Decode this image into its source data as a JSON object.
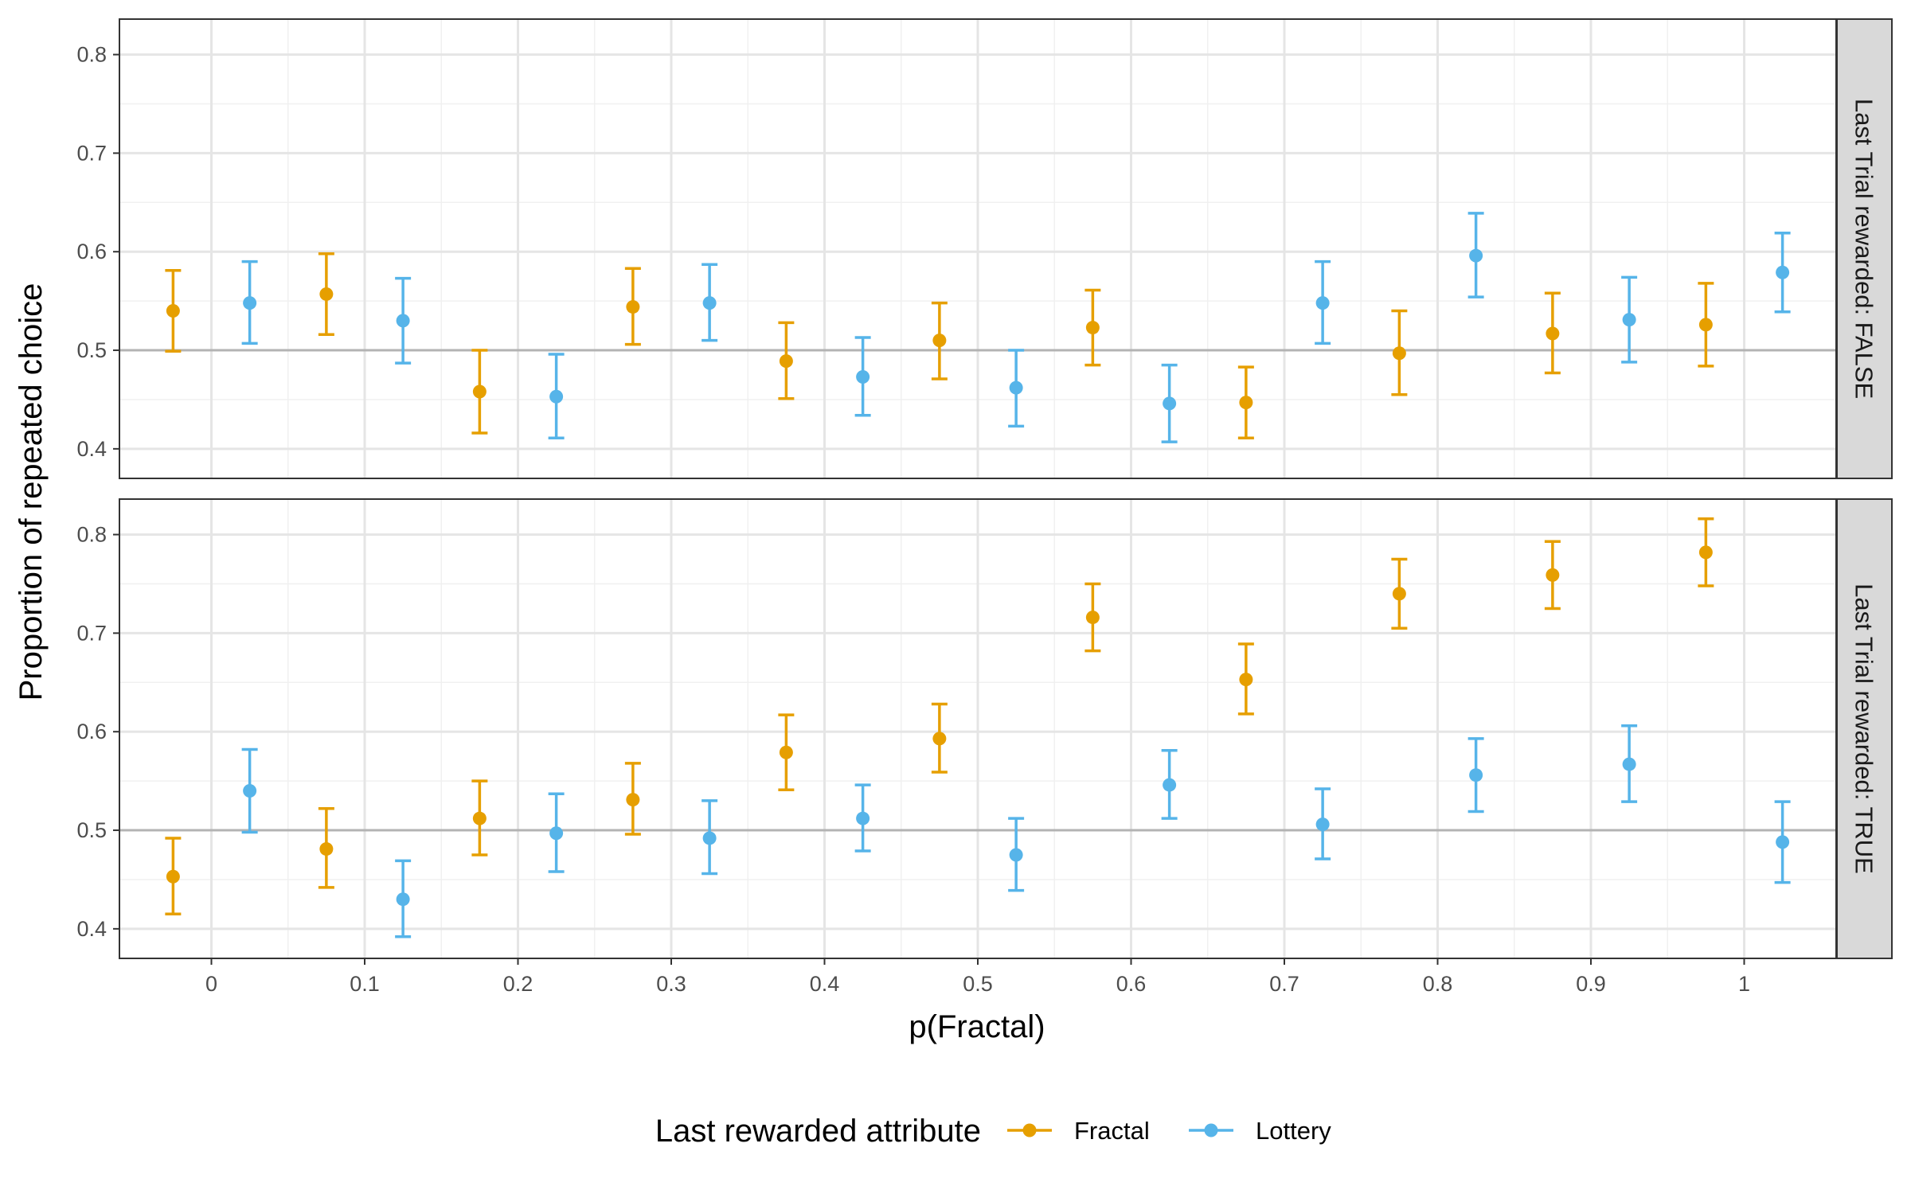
{
  "chart_data": {
    "type": "scatter",
    "subtype": "point-range with error bars, faceted",
    "xlabel": "p(Fractal)",
    "ylabel": "Proportion of repeated choice",
    "x_ticks": [
      0,
      0.1,
      0.2,
      0.3,
      0.4,
      0.5,
      0.6,
      0.7,
      0.8,
      0.9,
      1
    ],
    "x_tick_labels": [
      "0",
      "0.1",
      "0.2",
      "0.3",
      "0.4",
      "0.5",
      "0.6",
      "0.7",
      "0.8",
      "0.9",
      "1"
    ],
    "xlim": [
      -0.06,
      1.06
    ],
    "y_ticks": [
      0.4,
      0.5,
      0.6,
      0.7,
      0.8
    ],
    "y_tick_labels": [
      "0.4",
      "0.5",
      "0.6",
      "0.7",
      "0.8"
    ],
    "reference_line_y": 0.5,
    "grid": true,
    "legend": {
      "title": "Last rewarded attribute",
      "position": "bottom",
      "entries": [
        "Fractal",
        "Lottery"
      ]
    },
    "colors": {
      "Fractal": "#E69F00",
      "Lottery": "#56B4E9",
      "reference_line": "#b3b3b3"
    },
    "dodge": 0.025,
    "panels": [
      {
        "strip_label": "Last Trial rewarded: FALSE",
        "ylim": [
          0.37,
          0.836
        ],
        "series": [
          {
            "name": "Fractal",
            "x": [
              0,
              0.1,
              0.2,
              0.3,
              0.4,
              0.5,
              0.6,
              0.7,
              0.8,
              0.9,
              1
            ],
            "y": [
              0.54,
              0.557,
              0.458,
              0.544,
              0.489,
              0.51,
              0.523,
              0.447,
              0.497,
              0.517,
              0.526
            ],
            "ymin": [
              0.499,
              0.516,
              0.416,
              0.506,
              0.451,
              0.471,
              0.485,
              0.411,
              0.455,
              0.477,
              0.484
            ],
            "ymax": [
              0.581,
              0.598,
              0.5,
              0.583,
              0.528,
              0.548,
              0.561,
              0.483,
              0.54,
              0.558,
              0.568
            ]
          },
          {
            "name": "Lottery",
            "x": [
              0,
              0.1,
              0.2,
              0.3,
              0.4,
              0.5,
              0.6,
              0.7,
              0.8,
              0.9,
              1
            ],
            "y": [
              0.548,
              0.53,
              0.453,
              0.548,
              0.473,
              0.462,
              0.446,
              0.548,
              0.596,
              0.531,
              0.579
            ],
            "ymin": [
              0.507,
              0.487,
              0.411,
              0.51,
              0.434,
              0.423,
              0.407,
              0.507,
              0.554,
              0.488,
              0.539
            ],
            "ymax": [
              0.59,
              0.573,
              0.496,
              0.587,
              0.513,
              0.5,
              0.485,
              0.59,
              0.639,
              0.574,
              0.619
            ]
          }
        ]
      },
      {
        "strip_label": "Last Trial rewarded: TRUE",
        "ylim": [
          0.37,
          0.836
        ],
        "series": [
          {
            "name": "Fractal",
            "x": [
              0,
              0.1,
              0.2,
              0.3,
              0.4,
              0.5,
              0.6,
              0.7,
              0.8,
              0.9,
              1
            ],
            "y": [
              0.453,
              0.481,
              0.512,
              0.531,
              0.579,
              0.593,
              0.716,
              0.653,
              0.74,
              0.759,
              0.782
            ],
            "ymin": [
              0.415,
              0.442,
              0.475,
              0.496,
              0.541,
              0.559,
              0.682,
              0.618,
              0.705,
              0.725,
              0.748
            ],
            "ymax": [
              0.492,
              0.522,
              0.55,
              0.568,
              0.617,
              0.628,
              0.75,
              0.689,
              0.775,
              0.793,
              0.816
            ]
          },
          {
            "name": "Lottery",
            "x": [
              0,
              0.1,
              0.2,
              0.3,
              0.4,
              0.5,
              0.6,
              0.7,
              0.8,
              0.9,
              1
            ],
            "y": [
              0.54,
              0.43,
              0.497,
              0.492,
              0.512,
              0.475,
              0.546,
              0.506,
              0.556,
              0.567,
              0.488
            ],
            "ymin": [
              0.498,
              0.392,
              0.458,
              0.456,
              0.479,
              0.439,
              0.512,
              0.471,
              0.519,
              0.529,
              0.447
            ],
            "ymax": [
              0.582,
              0.469,
              0.537,
              0.53,
              0.546,
              0.512,
              0.581,
              0.542,
              0.593,
              0.606,
              0.529
            ]
          }
        ]
      }
    ]
  }
}
